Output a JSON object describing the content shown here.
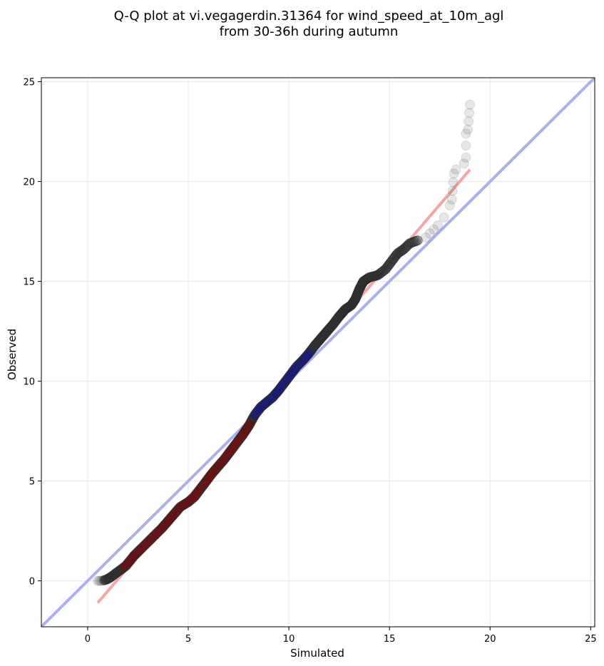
{
  "chart_data": {
    "type": "scatter",
    "title": [
      "Q-Q plot at vi.vegagerdin.31364 for wind_speed_at_10m_agl",
      "from 30-36h during autumn"
    ],
    "xlabel": "Simulated",
    "ylabel": "Observed",
    "xlim": [
      -2.3,
      25.2
    ],
    "ylim": [
      -2.3,
      25.2
    ],
    "xticks": [
      0,
      5,
      10,
      15,
      20,
      25
    ],
    "yticks": [
      0,
      5,
      10,
      15,
      20,
      25
    ],
    "grid": true,
    "identity_line": {
      "from": [
        -2.3,
        -2.3
      ],
      "to": [
        25.2,
        25.2
      ],
      "color": "#aab0ee"
    },
    "fit_line": {
      "from": [
        0.5,
        -1.1
      ],
      "to": [
        19.0,
        20.6
      ],
      "color": "#f4a6a6"
    },
    "dense_segment_colors": {
      "low": "#7a0f0f",
      "mid": "#1a1a8a",
      "high": "#7a0f0f"
    },
    "points": {
      "color": "#333333",
      "qq_points": [
        [
          0.5,
          0.0
        ],
        [
          0.7,
          0.0
        ],
        [
          0.9,
          0.05
        ],
        [
          1.1,
          0.15
        ],
        [
          1.3,
          0.3
        ],
        [
          1.5,
          0.45
        ],
        [
          1.7,
          0.6
        ],
        [
          1.9,
          0.75
        ],
        [
          2.1,
          1.0
        ],
        [
          2.3,
          1.25
        ],
        [
          2.5,
          1.45
        ],
        [
          2.8,
          1.75
        ],
        [
          3.1,
          2.05
        ],
        [
          3.4,
          2.35
        ],
        [
          3.7,
          2.65
        ],
        [
          4.0,
          3.0
        ],
        [
          4.3,
          3.35
        ],
        [
          4.6,
          3.7
        ],
        [
          5.0,
          3.95
        ],
        [
          5.3,
          4.2
        ],
        [
          5.6,
          4.6
        ],
        [
          5.9,
          5.0
        ],
        [
          6.2,
          5.4
        ],
        [
          6.5,
          5.75
        ],
        [
          6.8,
          6.1
        ],
        [
          7.1,
          6.5
        ],
        [
          7.4,
          6.9
        ],
        [
          7.7,
          7.3
        ],
        [
          8.0,
          7.75
        ],
        [
          8.3,
          8.3
        ],
        [
          8.6,
          8.7
        ],
        [
          8.9,
          8.95
        ],
        [
          9.2,
          9.2
        ],
        [
          9.5,
          9.55
        ],
        [
          9.8,
          9.95
        ],
        [
          10.1,
          10.35
        ],
        [
          10.4,
          10.75
        ],
        [
          10.7,
          11.05
        ],
        [
          11.0,
          11.4
        ],
        [
          11.3,
          11.8
        ],
        [
          11.6,
          12.15
        ],
        [
          11.9,
          12.5
        ],
        [
          12.2,
          12.85
        ],
        [
          12.5,
          13.25
        ],
        [
          12.8,
          13.6
        ],
        [
          13.1,
          13.8
        ],
        [
          13.3,
          14.1
        ],
        [
          13.5,
          14.6
        ],
        [
          13.7,
          15.0
        ],
        [
          14.0,
          15.2
        ],
        [
          14.4,
          15.3
        ],
        [
          14.8,
          15.6
        ],
        [
          15.1,
          16.0
        ],
        [
          15.4,
          16.4
        ],
        [
          15.7,
          16.6
        ],
        [
          16.0,
          16.9
        ],
        [
          16.4,
          17.05
        ],
        [
          16.8,
          17.2
        ],
        [
          17.0,
          17.4
        ],
        [
          17.2,
          17.6
        ],
        [
          17.4,
          17.8
        ],
        [
          17.7,
          18.2
        ],
        [
          18.0,
          18.8
        ],
        [
          18.1,
          19.1
        ],
        [
          18.2,
          20.4
        ],
        [
          18.3,
          20.6
        ],
        [
          18.7,
          20.9
        ],
        [
          18.8,
          21.2
        ],
        [
          18.8,
          22.4
        ],
        [
          18.9,
          22.6
        ],
        [
          19.0,
          23.85
        ]
      ]
    }
  }
}
